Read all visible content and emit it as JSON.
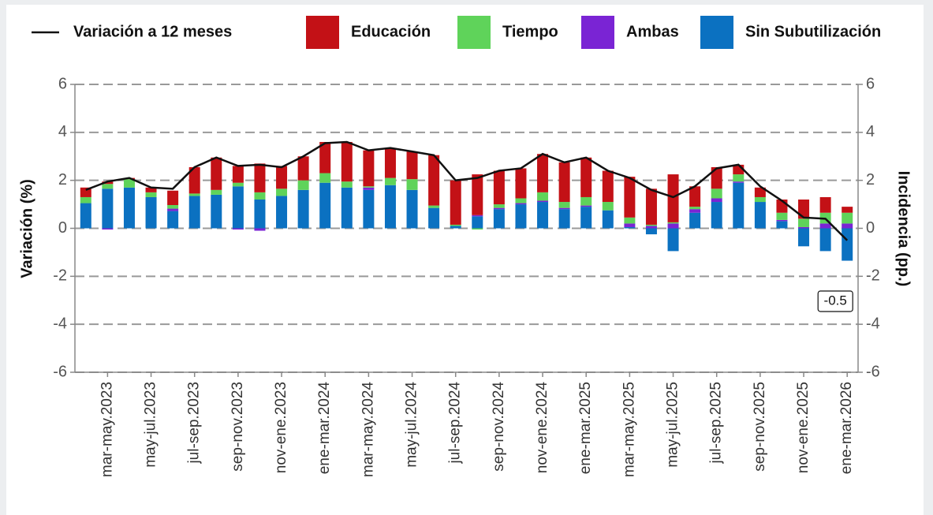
{
  "chart_data": {
    "type": "bar",
    "stacked": true,
    "ylabel": "Variación (%)",
    "y2label": "Incidencia (pp.)",
    "ylim": [
      -6,
      6
    ],
    "yticks": [
      -6,
      -4,
      -2,
      0,
      2,
      4,
      6
    ],
    "y2lim": [
      -6,
      6
    ],
    "y2ticks": [
      -6,
      -4,
      -2,
      0,
      2,
      4,
      6
    ],
    "grid": true,
    "categories": [
      null,
      "mar-may.2023",
      null,
      "may-jul.2023",
      null,
      "jul-sep.2023",
      null,
      "sep-nov.2023",
      null,
      "nov-ene.2023",
      null,
      "ene-mar.2024",
      null,
      "mar-may.2024",
      null,
      "may-jul.2024",
      null,
      "jul-sep.2024",
      null,
      "sep-nov.2024",
      null,
      "nov-ene.2024",
      null,
      "ene-mar.2025",
      null,
      "mar-may.2025",
      null,
      "may-jul.2025",
      null,
      "jul-sep.2025",
      null,
      "sep-nov.2025",
      null,
      "nov-ene.2025",
      null,
      "ene-mar.2026"
    ],
    "series": [
      {
        "name": "Variación a 12 meses",
        "type": "line",
        "color": "#111111",
        "values": [
          1.6,
          1.95,
          2.1,
          1.7,
          1.65,
          2.55,
          2.95,
          2.6,
          2.65,
          2.55,
          3.0,
          3.55,
          3.6,
          3.25,
          3.35,
          3.2,
          3.05,
          2.0,
          2.1,
          2.4,
          2.5,
          3.1,
          2.75,
          2.95,
          2.4,
          2.1,
          1.6,
          1.3,
          1.75,
          2.5,
          2.65,
          1.75,
          1.15,
          0.45,
          0.4,
          -0.5
        ],
        "value_labels": [
          null,
          null,
          null,
          null,
          null,
          null,
          null,
          null,
          null,
          null,
          null,
          null,
          null,
          null,
          null,
          null,
          null,
          null,
          null,
          null,
          null,
          null,
          null,
          null,
          null,
          null,
          null,
          null,
          null,
          null,
          null,
          null,
          null,
          null,
          null,
          "-0.5"
        ]
      },
      {
        "name": "Educación",
        "type": "bar",
        "axis": "y2",
        "color": "#c31116",
        "values": [
          0.4,
          0.1,
          0.05,
          0.2,
          0.6,
          1.1,
          1.35,
          0.7,
          1.2,
          0.95,
          1.0,
          1.3,
          1.65,
          1.5,
          1.25,
          1.15,
          2.1,
          1.85,
          1.7,
          1.4,
          1.25,
          1.6,
          1.65,
          1.65,
          1.3,
          1.7,
          1.5,
          2.0,
          0.85,
          0.9,
          0.4,
          0.4,
          0.55,
          0.8,
          0.65,
          0.25
        ]
      },
      {
        "name": "Tiempo",
        "type": "bar",
        "axis": "y2",
        "color": "#5fd35a",
        "values": [
          0.25,
          0.2,
          0.35,
          0.2,
          0.15,
          0.1,
          0.2,
          0.15,
          0.3,
          0.3,
          0.4,
          0.4,
          0.25,
          0.05,
          0.3,
          0.45,
          0.1,
          0.05,
          -0.05,
          0.15,
          0.2,
          0.35,
          0.25,
          0.35,
          0.35,
          0.25,
          0.05,
          0.05,
          0.1,
          0.4,
          0.3,
          0.2,
          0.3,
          0.35,
          0.45,
          0.45
        ]
      },
      {
        "name": "Ambas",
        "type": "bar",
        "axis": "y2",
        "color": "#7a24d4",
        "values": [
          0,
          -0.05,
          0,
          0,
          0.1,
          0,
          0,
          -0.05,
          -0.1,
          0,
          0,
          0,
          0,
          0.1,
          0,
          0,
          0,
          0,
          0.05,
          0.05,
          0.05,
          0.05,
          0.05,
          0.05,
          0,
          0.15,
          0.1,
          0.2,
          0.15,
          0.15,
          0.05,
          0,
          0.05,
          0.05,
          0.2,
          0.2
        ]
      },
      {
        "name": "Sin Subutilización",
        "type": "bar",
        "axis": "y2",
        "color": "#0b71c1",
        "values": [
          1.05,
          1.65,
          1.7,
          1.3,
          0.72,
          1.35,
          1.4,
          1.75,
          1.2,
          1.35,
          1.6,
          1.9,
          1.7,
          1.6,
          1.8,
          1.6,
          0.85,
          0.1,
          0.5,
          0.8,
          1.0,
          1.1,
          0.8,
          0.9,
          0.75,
          0.05,
          -0.25,
          -0.95,
          0.65,
          1.1,
          1.9,
          1.1,
          0.3,
          -0.75,
          -0.95,
          -1.35
        ]
      }
    ]
  }
}
